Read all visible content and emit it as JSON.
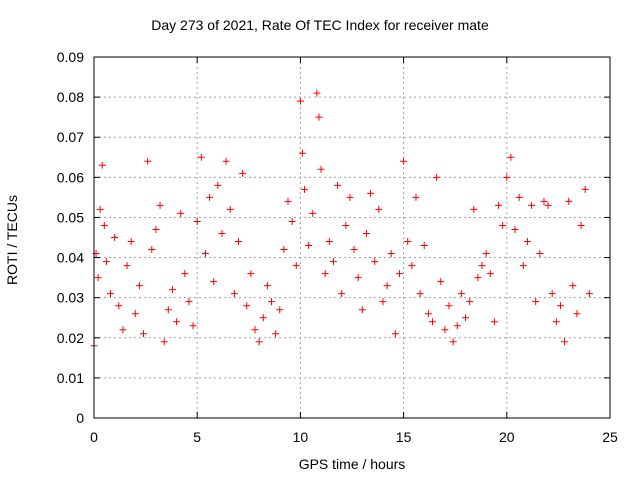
{
  "chart_data": {
    "type": "scatter",
    "title": "Day 273 of 2021, Rate Of TEC Index for receiver mate",
    "xlabel": "GPS time / hours",
    "ylabel": "ROTI / TECUs",
    "xlim": [
      0,
      25
    ],
    "ylim": [
      0,
      0.09
    ],
    "xticks": [
      "0",
      "5",
      "10",
      "15",
      "20",
      "25"
    ],
    "yticks": [
      "0",
      "0.01",
      "0.02",
      "0.03",
      "0.04",
      "0.05",
      "0.06",
      "0.07",
      "0.08",
      "0.09"
    ],
    "grid": true,
    "marker": "+",
    "color": "#ff0000",
    "series": [
      {
        "name": "",
        "x": [
          0.0,
          0.1,
          0.2,
          0.3,
          0.4,
          0.5,
          0.6,
          0.8,
          1.0,
          1.2,
          1.4,
          1.6,
          1.8,
          2.0,
          2.2,
          2.4,
          2.6,
          2.8,
          3.0,
          3.2,
          3.4,
          3.6,
          3.8,
          4.0,
          4.2,
          4.4,
          4.6,
          4.8,
          5.0,
          5.2,
          5.4,
          5.6,
          5.8,
          6.0,
          6.2,
          6.4,
          6.6,
          6.8,
          7.0,
          7.2,
          7.4,
          7.6,
          7.8,
          8.0,
          8.2,
          8.4,
          8.6,
          8.8,
          9.0,
          9.2,
          9.4,
          9.6,
          9.8,
          10.0,
          10.1,
          10.2,
          10.4,
          10.6,
          10.8,
          10.9,
          11.0,
          11.2,
          11.4,
          11.6,
          11.8,
          12.0,
          12.2,
          12.4,
          12.6,
          12.8,
          13.0,
          13.2,
          13.4,
          13.6,
          13.8,
          14.0,
          14.2,
          14.4,
          14.6,
          14.8,
          15.0,
          15.2,
          15.4,
          15.6,
          15.8,
          16.0,
          16.2,
          16.4,
          16.6,
          16.8,
          17.0,
          17.2,
          17.4,
          17.6,
          17.8,
          18.0,
          18.2,
          18.4,
          18.6,
          18.8,
          19.0,
          19.2,
          19.4,
          19.6,
          19.8,
          20.0,
          20.2,
          20.4,
          20.6,
          20.8,
          21.0,
          21.2,
          21.4,
          21.6,
          21.8,
          22.0,
          22.2,
          22.4,
          22.6,
          22.8,
          23.0,
          23.2,
          23.4,
          23.6,
          23.8,
          24.0
        ],
        "y": [
          0.018,
          0.041,
          0.035,
          0.052,
          0.063,
          0.048,
          0.039,
          0.031,
          0.045,
          0.028,
          0.022,
          0.038,
          0.044,
          0.026,
          0.033,
          0.021,
          0.064,
          0.042,
          0.047,
          0.053,
          0.019,
          0.027,
          0.032,
          0.024,
          0.051,
          0.036,
          0.029,
          0.023,
          0.049,
          0.065,
          0.041,
          0.055,
          0.034,
          0.058,
          0.046,
          0.064,
          0.052,
          0.031,
          0.044,
          0.061,
          0.028,
          0.036,
          0.022,
          0.019,
          0.025,
          0.033,
          0.029,
          0.021,
          0.027,
          0.042,
          0.054,
          0.049,
          0.038,
          0.079,
          0.066,
          0.057,
          0.043,
          0.051,
          0.081,
          0.075,
          0.062,
          0.036,
          0.044,
          0.039,
          0.058,
          0.031,
          0.048,
          0.055,
          0.042,
          0.035,
          0.027,
          0.046,
          0.056,
          0.039,
          0.052,
          0.029,
          0.033,
          0.041,
          0.021,
          0.036,
          0.064,
          0.044,
          0.038,
          0.055,
          0.031,
          0.043,
          0.026,
          0.024,
          0.06,
          0.034,
          0.022,
          0.028,
          0.019,
          0.023,
          0.031,
          0.025,
          0.029,
          0.052,
          0.035,
          0.038,
          0.041,
          0.036,
          0.024,
          0.053,
          0.048,
          0.06,
          0.065,
          0.047,
          0.055,
          0.038,
          0.044,
          0.053,
          0.029,
          0.041,
          0.054,
          0.053,
          0.031,
          0.024,
          0.028,
          0.019,
          0.054,
          0.033,
          0.026,
          0.048,
          0.057,
          0.031
        ]
      }
    ]
  }
}
